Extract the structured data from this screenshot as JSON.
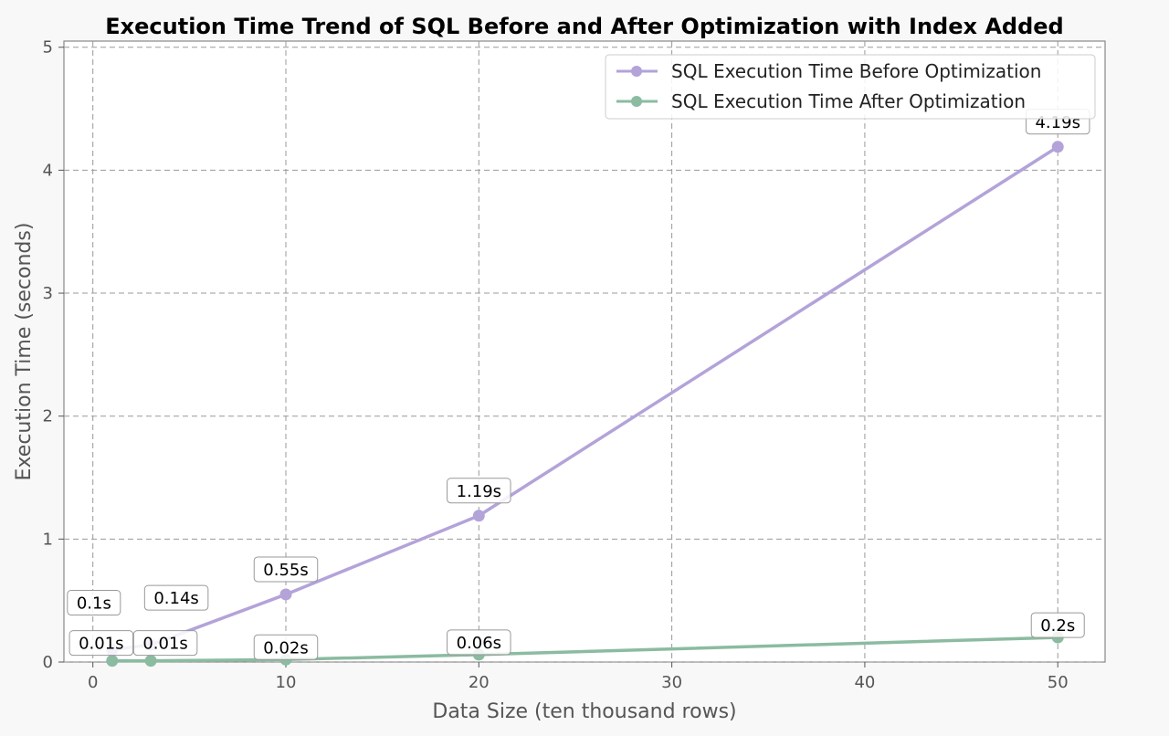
{
  "chart_data": {
    "type": "line",
    "title": "Execution Time Trend of SQL Before and After Optimization with Index Added",
    "xlabel": "Data Size (ten thousand rows)",
    "ylabel": "Execution Time (seconds)",
    "x": [
      1,
      3,
      10,
      20,
      50
    ],
    "xticks": [
      0,
      10,
      20,
      30,
      40,
      50
    ],
    "yticks": [
      0,
      1,
      2,
      3,
      4,
      5
    ],
    "xlim": [
      -1.5,
      52.45
    ],
    "ylim": [
      0,
      5.05
    ],
    "grid": true,
    "legend_position": "top-right",
    "series": [
      {
        "name": "SQL Execution Time Before Optimization",
        "color": "#b3a3d9",
        "values": [
          0.1,
          0.14,
          0.55,
          1.19,
          4.19
        ],
        "labels": [
          "0.1s",
          "0.14s",
          "0.55s",
          "1.19s",
          "4.19s"
        ]
      },
      {
        "name": "SQL Execution Time After Optimization",
        "color": "#8bbba0",
        "values": [
          0.01,
          0.01,
          0.02,
          0.06,
          0.2
        ],
        "labels": [
          "0.01s",
          "0.01s",
          "0.02s",
          "0.06s",
          "0.2s"
        ]
      }
    ]
  }
}
